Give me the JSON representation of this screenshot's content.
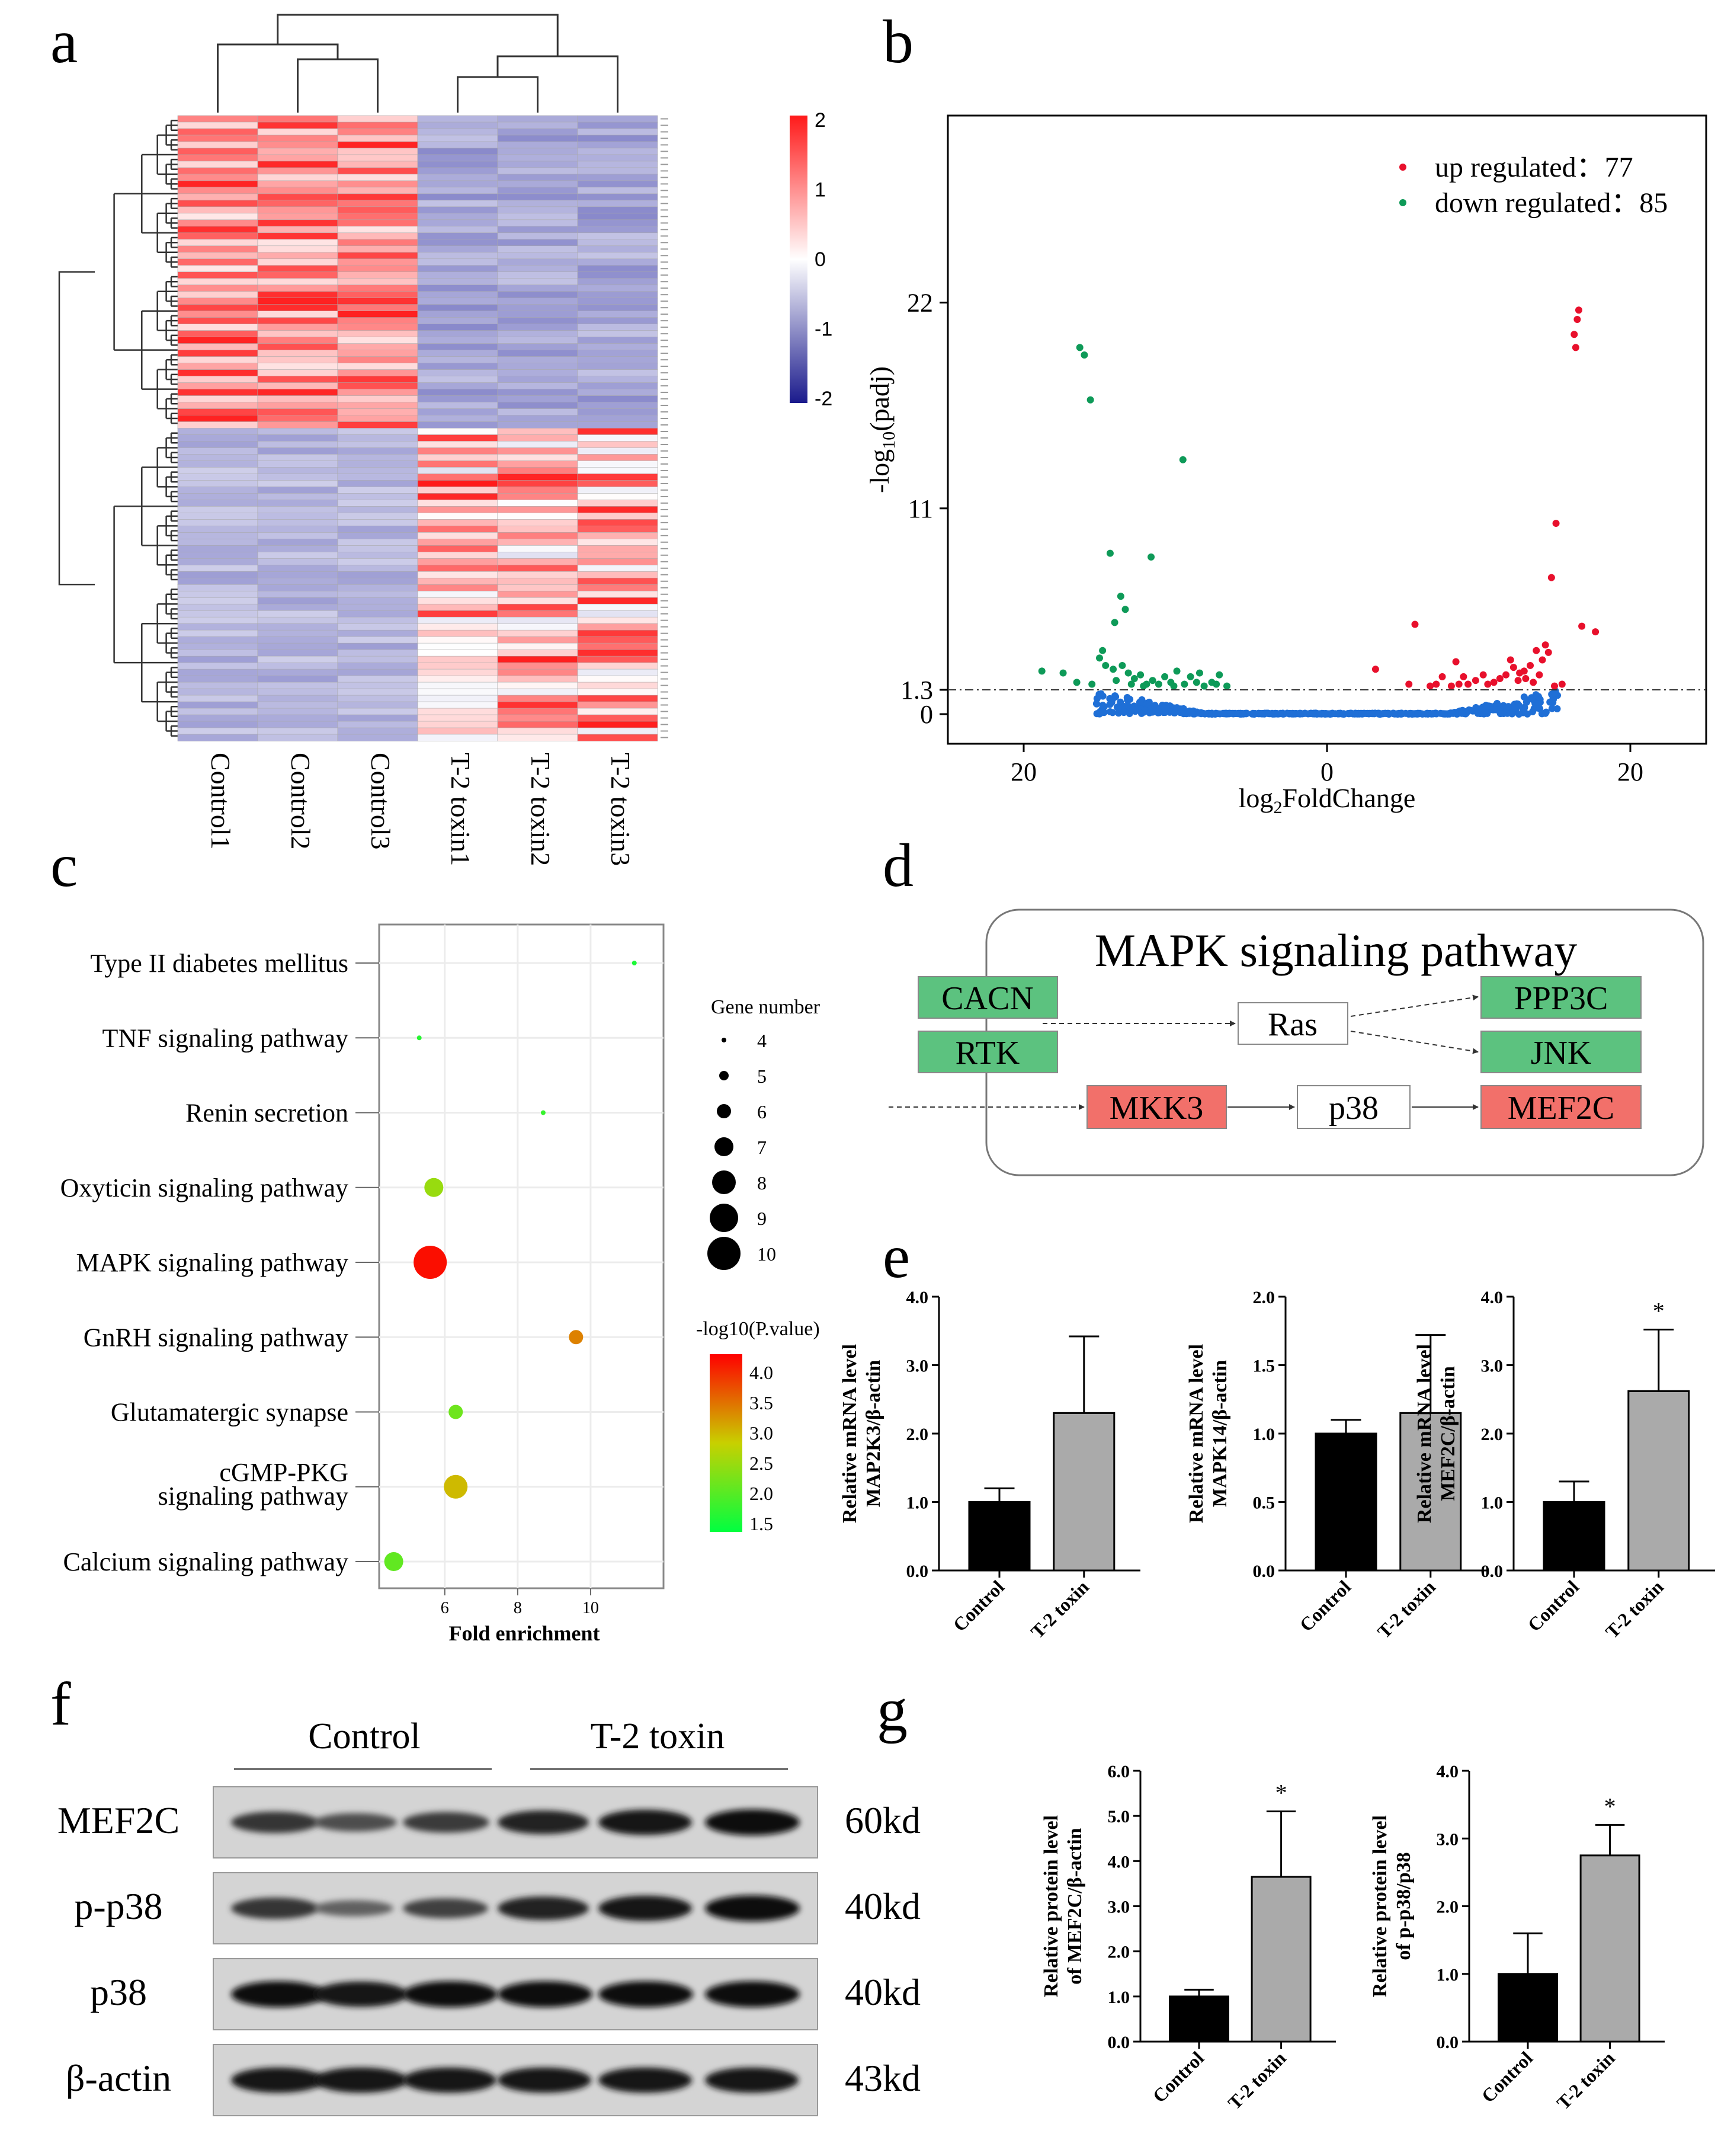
{
  "colors": {
    "heat_low": "#2b2ba0",
    "heat_mid": "#ffffff",
    "heat_high": "#ff1a1a",
    "up": "#e8102c",
    "down": "#0e9a58",
    "ns": "#1f6fd6",
    "kegg_green": "#5cc27f",
    "kegg_red": "#f2706a",
    "bar_control": "#000000",
    "bar_toxin": "#aaaaaa",
    "enrich_low": "#00ff40",
    "enrich_mid": "#c8d000",
    "enrich_high": "#ff0000"
  },
  "panels": {
    "a": "a",
    "b": "b",
    "c": "c",
    "d": "d",
    "e": "e",
    "f": "f",
    "g": "g"
  },
  "chart_data": [
    {
      "id": "a",
      "type": "heatmap",
      "title": "",
      "columns": [
        "Control1",
        "Control2",
        "Control3",
        "T-2 toxin1",
        "T-2 toxin2",
        "T-2 toxin3"
      ],
      "colorbar": {
        "ticks": [
          "2",
          "1",
          "0",
          "-1",
          "-2"
        ],
        "range": [
          -2,
          2
        ]
      },
      "rows_per_group": 48,
      "note": "162 differentially expressed transcripts (ENSRNOT identifiers, too small to read); upper block up in Control, lower block up in T-2 toxin"
    },
    {
      "id": "b",
      "type": "scatter",
      "xlabel": "log2FoldChange",
      "ylabel": "-log10(padj)",
      "x_ticks": [
        "20",
        "0",
        "20"
      ],
      "y_ticks": [
        "22",
        "11",
        "1.3",
        "0"
      ],
      "xlim": [
        -25,
        25
      ],
      "ylim": [
        0,
        32
      ],
      "threshold_y": 1.3,
      "legend": [
        {
          "label": "up regulated：77",
          "color_key": "up"
        },
        {
          "label": "down regulated：85",
          "color_key": "down"
        }
      ],
      "up_points": [
        [
          16.6,
          21.6
        ],
        [
          16.5,
          21.1
        ],
        [
          16.4,
          19.6
        ],
        [
          16.3,
          20.3
        ],
        [
          15.1,
          10.2
        ],
        [
          14.8,
          7.3
        ],
        [
          16.8,
          4.7
        ],
        [
          17.7,
          4.4
        ],
        [
          14.4,
          3.7
        ],
        [
          14.6,
          3.3
        ],
        [
          13.8,
          3.4
        ],
        [
          14.2,
          2.9
        ],
        [
          13.4,
          2.6
        ],
        [
          13.0,
          2.3
        ],
        [
          12.7,
          2.2
        ],
        [
          12.3,
          2.5
        ],
        [
          11.8,
          2.1
        ],
        [
          11.4,
          1.9
        ],
        [
          11.0,
          1.7
        ],
        [
          10.6,
          1.6
        ],
        [
          13.1,
          1.9
        ],
        [
          12.1,
          2.9
        ],
        [
          10.3,
          2.1
        ],
        [
          9.8,
          1.8
        ],
        [
          9.3,
          1.6
        ],
        [
          9.0,
          2.0
        ],
        [
          8.7,
          1.6
        ],
        [
          8.2,
          1.5
        ],
        [
          8.5,
          2.8
        ],
        [
          7.6,
          2.0
        ],
        [
          7.2,
          1.6
        ],
        [
          6.8,
          1.5
        ],
        [
          5.8,
          4.8
        ],
        [
          5.4,
          1.6
        ],
        [
          3.2,
          2.4
        ],
        [
          15.5,
          1.6
        ],
        [
          15.0,
          1.5
        ],
        [
          14.0,
          2.1
        ],
        [
          13.6,
          1.7
        ],
        [
          12.6,
          1.8
        ]
      ],
      "down_points": [
        [
          -16.3,
          19.6
        ],
        [
          -16.0,
          19.2
        ],
        [
          -15.6,
          16.8
        ],
        [
          -9.5,
          13.6
        ],
        [
          -14.3,
          8.6
        ],
        [
          -11.6,
          8.4
        ],
        [
          -13.6,
          6.3
        ],
        [
          -13.3,
          5.6
        ],
        [
          -14.0,
          4.9
        ],
        [
          -14.8,
          3.4
        ],
        [
          -15.0,
          3.0
        ],
        [
          -14.6,
          2.6
        ],
        [
          -14.1,
          2.4
        ],
        [
          -13.5,
          2.6
        ],
        [
          -13.1,
          2.2
        ],
        [
          -12.7,
          1.9
        ],
        [
          -12.3,
          2.1
        ],
        [
          -11.9,
          1.6
        ],
        [
          -11.5,
          1.8
        ],
        [
          -11.1,
          1.6
        ],
        [
          -10.7,
          2.0
        ],
        [
          -10.3,
          1.7
        ],
        [
          -9.9,
          2.3
        ],
        [
          -9.4,
          1.6
        ],
        [
          -9.0,
          2.0
        ],
        [
          -8.6,
          1.7
        ],
        [
          -8.1,
          1.5
        ],
        [
          -7.6,
          1.7
        ],
        [
          -7.1,
          2.1
        ],
        [
          -6.6,
          1.5
        ],
        [
          -16.5,
          1.7
        ],
        [
          -17.4,
          2.2
        ],
        [
          -18.8,
          2.3
        ],
        [
          -15.5,
          1.6
        ],
        [
          -13.9,
          1.8
        ],
        [
          -12.9,
          1.6
        ],
        [
          -12.1,
          1.5
        ],
        [
          -10.1,
          1.5
        ],
        [
          -8.4,
          2.2
        ],
        [
          -7.3,
          1.6
        ]
      ]
    },
    {
      "id": "c",
      "type": "scatter",
      "xlabel": "Fold enrichment",
      "x_ticks": [
        "6",
        "8",
        "10"
      ],
      "xlim": [
        4.2,
        12.0
      ],
      "size_legend_title": "Gene number",
      "size_legend": [
        4,
        5,
        6,
        7,
        8,
        9,
        10
      ],
      "color_legend_title": "-log10(P.value)",
      "color_ticks": [
        "4.0",
        "3.5",
        "3.0",
        "2.5",
        "2.0",
        "1.5"
      ],
      "color_range": [
        1.3,
        4.2
      ],
      "terms": [
        {
          "label": "Type II diabetes mellitus",
          "fold": 11.2,
          "genes": 4,
          "logp": 1.5,
          "highlight": false
        },
        {
          "label": "TNF signaling pathway",
          "fold": 5.3,
          "genes": 4,
          "logp": 1.6,
          "highlight": false
        },
        {
          "label": "Renin secretion",
          "fold": 8.7,
          "genes": 4,
          "logp": 1.7,
          "highlight": false
        },
        {
          "label": "Oxyticin signaling pathway",
          "fold": 5.7,
          "genes": 7,
          "logp": 2.4,
          "highlight": false
        },
        {
          "label": "MAPK signaling pathway",
          "fold": 5.6,
          "genes": 10,
          "logp": 4.1,
          "highlight": true
        },
        {
          "label": "GnRH signaling pathway",
          "fold": 9.6,
          "genes": 6,
          "logp": 3.3,
          "highlight": false
        },
        {
          "label": "Glutamatergic synapse",
          "fold": 6.3,
          "genes": 6,
          "logp": 2.1,
          "highlight": false
        },
        {
          "label": "cGMP-PKG signaling pathway",
          "fold": 6.3,
          "genes": 8,
          "logp": 2.9,
          "highlight": false
        },
        {
          "label": "Calcium signaling pathway",
          "fold": 4.6,
          "genes": 7,
          "logp": 2.0,
          "highlight": false
        }
      ]
    },
    {
      "id": "e1",
      "type": "bar",
      "categories": [
        "Control",
        "T-2 toxin"
      ],
      "values": [
        1.0,
        2.3
      ],
      "errors": [
        0.2,
        1.12
      ],
      "ylim": [
        0,
        4.0
      ],
      "y_ticks": [
        "0.0",
        "1.0",
        "2.0",
        "3.0",
        "4.0"
      ],
      "ylabel_line1": "Relative mRNA level",
      "ylabel_line2": "MAP2K3/β-actin",
      "sig": ""
    },
    {
      "id": "e2",
      "type": "bar",
      "categories": [
        "Control",
        "T-2 toxin"
      ],
      "values": [
        1.0,
        1.15
      ],
      "errors": [
        0.1,
        0.57
      ],
      "ylim": [
        0,
        2.0
      ],
      "y_ticks": [
        "0.0",
        "0.5",
        "1.0",
        "1.5",
        "2.0"
      ],
      "ylabel_line1": "Relative mRNA level",
      "ylabel_line2": "MAPK14/β-actin",
      "sig": ""
    },
    {
      "id": "e3",
      "type": "bar",
      "categories": [
        "Control",
        "T-2 toxin"
      ],
      "values": [
        1.0,
        2.62
      ],
      "errors": [
        0.3,
        0.9
      ],
      "ylim": [
        0,
        4.0
      ],
      "y_ticks": [
        "0.0",
        "1.0",
        "2.0",
        "3.0",
        "4.0"
      ],
      "ylabel_line1": "Relative mRNA level",
      "ylabel_line2": "MEF2C/β-actin",
      "sig": "*"
    },
    {
      "id": "g1",
      "type": "bar",
      "categories": [
        "Control",
        "T-2 toxin"
      ],
      "values": [
        1.0,
        3.65
      ],
      "errors": [
        0.15,
        1.45
      ],
      "ylim": [
        0,
        6.0
      ],
      "y_ticks": [
        "0.0",
        "1.0",
        "2.0",
        "3.0",
        "4.0",
        "5.0",
        "6.0"
      ],
      "ylabel_line1": "Relative protein level",
      "ylabel_line2": "of MEF2C/β-actin",
      "sig": "*"
    },
    {
      "id": "g2",
      "type": "bar",
      "categories": [
        "Control",
        "T-2 toxin"
      ],
      "values": [
        1.0,
        2.75
      ],
      "errors": [
        0.6,
        0.45
      ],
      "ylim": [
        0,
        4.0
      ],
      "y_ticks": [
        "0.0",
        "1.0",
        "2.0",
        "3.0",
        "4.0"
      ],
      "ylabel_line1": "Relative protein level",
      "ylabel_line2": "of p-p38/p38",
      "sig": "*"
    }
  ],
  "kegg": {
    "title": "MAPK signaling pathway",
    "nodes": {
      "cacn": "CACN",
      "rtk": "RTK",
      "ras": "Ras",
      "ppp3c": "PPP3C",
      "jnk": "JNK",
      "mkk3": "MKK3",
      "p38": "p38",
      "mef2c": "MEF2C"
    }
  },
  "western": {
    "groups": [
      "Control",
      "T-2 toxin"
    ],
    "bands": [
      {
        "label": "MEF2C",
        "size": "60kd",
        "intensity": [
          0.7,
          0.5,
          0.65,
          0.85,
          0.95,
          1.0
        ]
      },
      {
        "label": "p-p38",
        "size": "40kd",
        "intensity": [
          0.7,
          0.35,
          0.6,
          0.85,
          0.95,
          1.0
        ]
      },
      {
        "label": "p38",
        "size": "40kd",
        "intensity": [
          1.0,
          0.95,
          1.0,
          1.0,
          1.0,
          1.0
        ]
      },
      {
        "label": "β-actin",
        "size": "43kd",
        "intensity": [
          0.95,
          0.95,
          0.95,
          0.95,
          0.95,
          0.95
        ]
      }
    ]
  }
}
